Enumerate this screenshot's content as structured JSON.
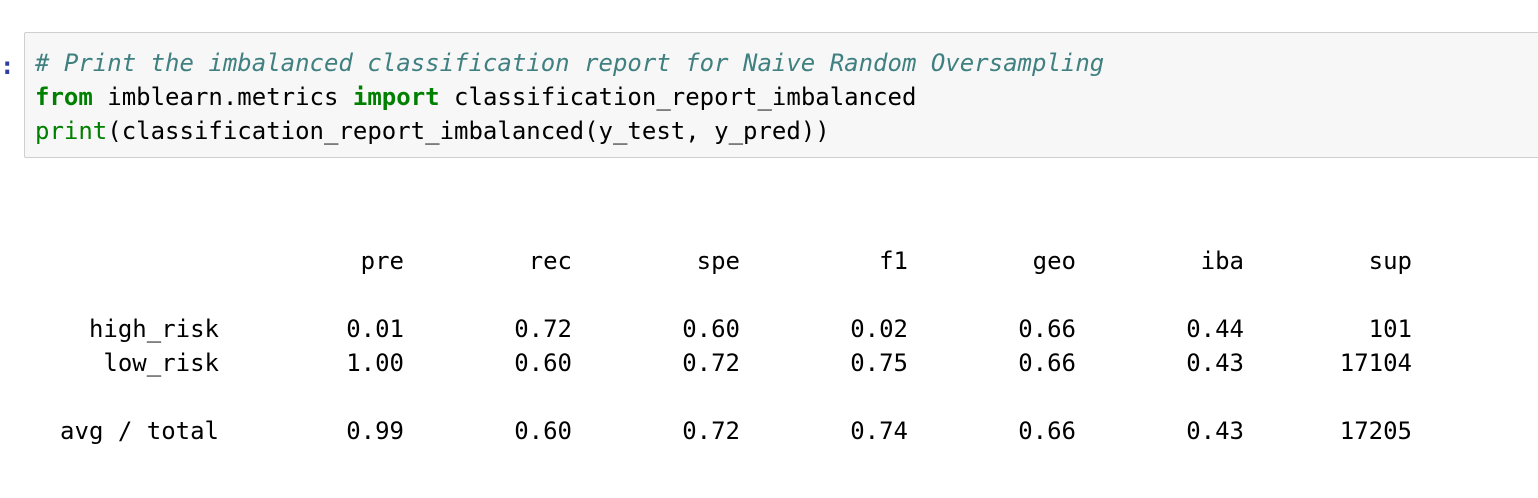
{
  "cell": {
    "prompt": ":",
    "code_lines": [
      [
        {
          "type": "comment",
          "text": "# Print the imbalanced classification report for Naive Random Oversampling"
        }
      ],
      [
        {
          "type": "kw",
          "text": "from"
        },
        {
          "type": "plain",
          "text": " imblearn.metrics "
        },
        {
          "type": "kw",
          "text": "import"
        },
        {
          "type": "plain",
          "text": " classification_report_imbalanced"
        }
      ],
      [
        {
          "type": "builtin",
          "text": "print"
        },
        {
          "type": "plain",
          "text": "(classification_report_imbalanced(y_test, y_pred))"
        }
      ]
    ]
  },
  "output": {
    "headers": [
      "pre",
      "rec",
      "spe",
      "f1",
      "geo",
      "iba",
      "sup"
    ],
    "rows": [
      {
        "label": "high_risk",
        "values": [
          "0.01",
          "0.72",
          "0.60",
          "0.02",
          "0.66",
          "0.44",
          "101"
        ]
      },
      {
        "label": "low_risk",
        "values": [
          "1.00",
          "0.60",
          "0.72",
          "0.75",
          "0.66",
          "0.43",
          "17104"
        ]
      }
    ],
    "total": {
      "label": "avg / total",
      "values": [
        "0.99",
        "0.60",
        "0.72",
        "0.74",
        "0.66",
        "0.43",
        "17205"
      ]
    }
  }
}
